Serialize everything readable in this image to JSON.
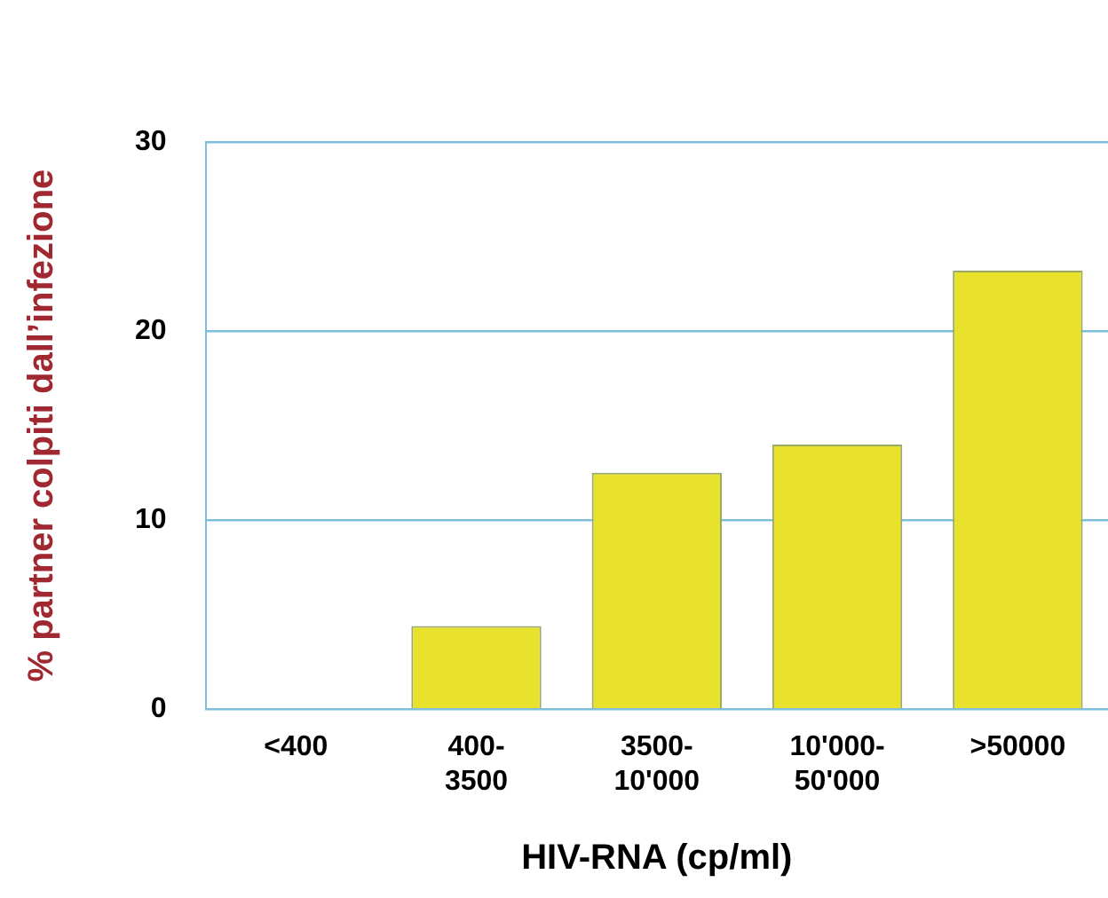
{
  "chart_data": {
    "type": "bar",
    "xlabel": "HIV-RNA (cp/ml)",
    "ylabel": "% partner colpiti dall’infezione",
    "categories": [
      "<400",
      "400-3500",
      "3500-10'000",
      "10'000-50'000",
      ">50000"
    ],
    "values": [
      0,
      4.4,
      12.5,
      14.0,
      23.2
    ],
    "color": "#e8e22c",
    "ylim": [
      0,
      30
    ],
    "yticks": [
      0,
      10,
      20,
      30
    ],
    "grid": "y"
  }
}
